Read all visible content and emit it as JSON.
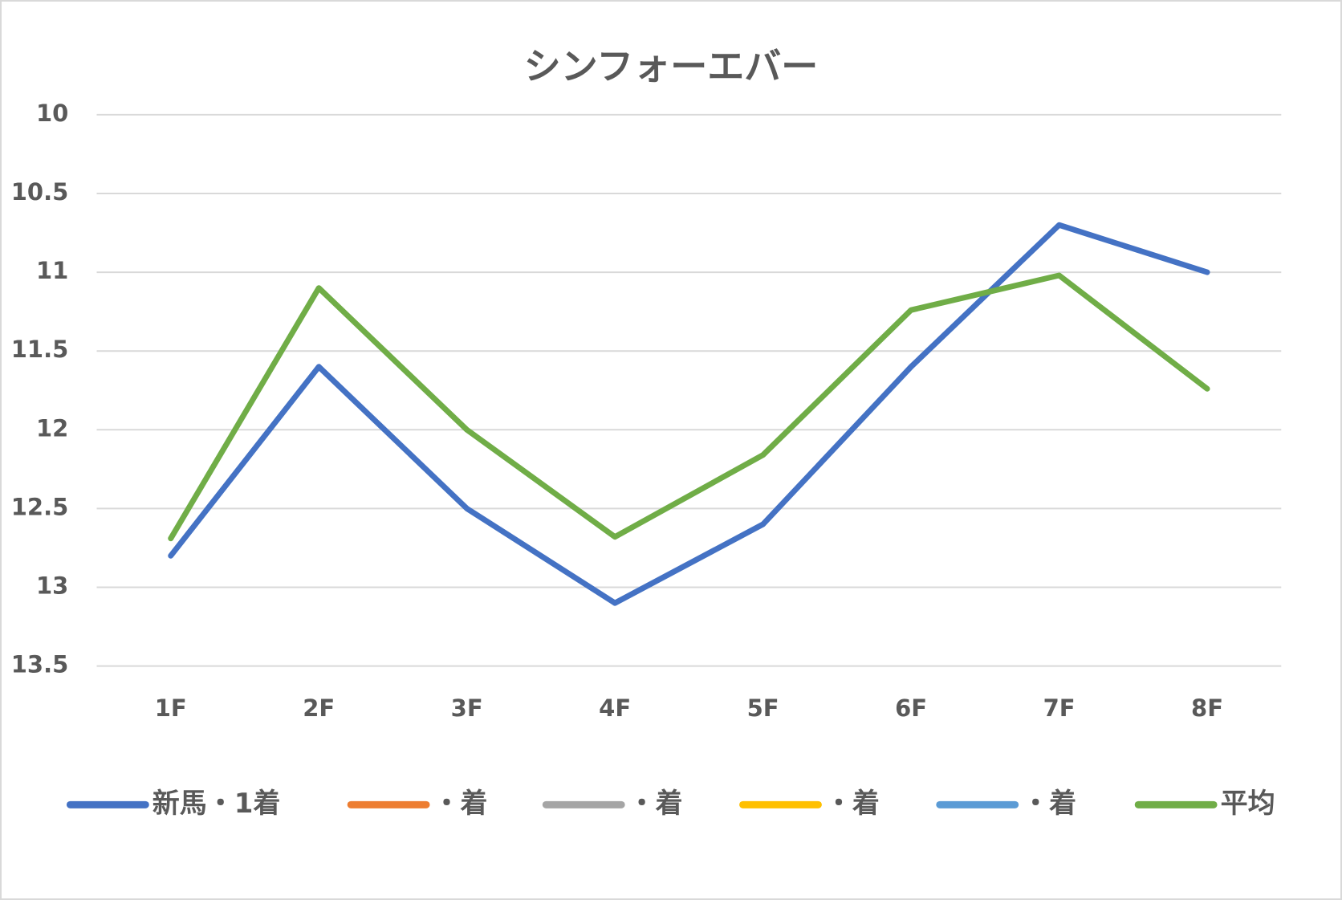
{
  "chart_data": {
    "type": "line",
    "title": "シンフォーエバー",
    "categories": [
      "1F",
      "2F",
      "3F",
      "4F",
      "5F",
      "6F",
      "7F",
      "8F"
    ],
    "series": [
      {
        "name": "新馬・1着",
        "color": "#4472c4",
        "values": [
          12.8,
          11.6,
          12.5,
          13.1,
          12.6,
          11.6,
          10.7,
          11.0
        ]
      },
      {
        "name": "・着",
        "color": "#ed7d31",
        "values": [
          null,
          null,
          null,
          null,
          null,
          null,
          null,
          null
        ]
      },
      {
        "name": "・着",
        "color": "#a5a5a5",
        "values": [
          null,
          null,
          null,
          null,
          null,
          null,
          null,
          null
        ]
      },
      {
        "name": "・着",
        "color": "#ffc000",
        "values": [
          null,
          null,
          null,
          null,
          null,
          null,
          null,
          null
        ]
      },
      {
        "name": "・着",
        "color": "#5b9bd5",
        "values": [
          null,
          null,
          null,
          null,
          null,
          null,
          null,
          null
        ]
      },
      {
        "name": "平均",
        "color": "#70ad47",
        "values": [
          12.69,
          11.1,
          12.0,
          12.68,
          12.16,
          11.24,
          11.02,
          11.74
        ]
      }
    ],
    "ylim": [
      10,
      13.5
    ],
    "y_inverted": true,
    "yticks": [
      10,
      10.5,
      11,
      11.5,
      12,
      12.5,
      13,
      13.5
    ],
    "grid": true,
    "legend": "bottom"
  }
}
